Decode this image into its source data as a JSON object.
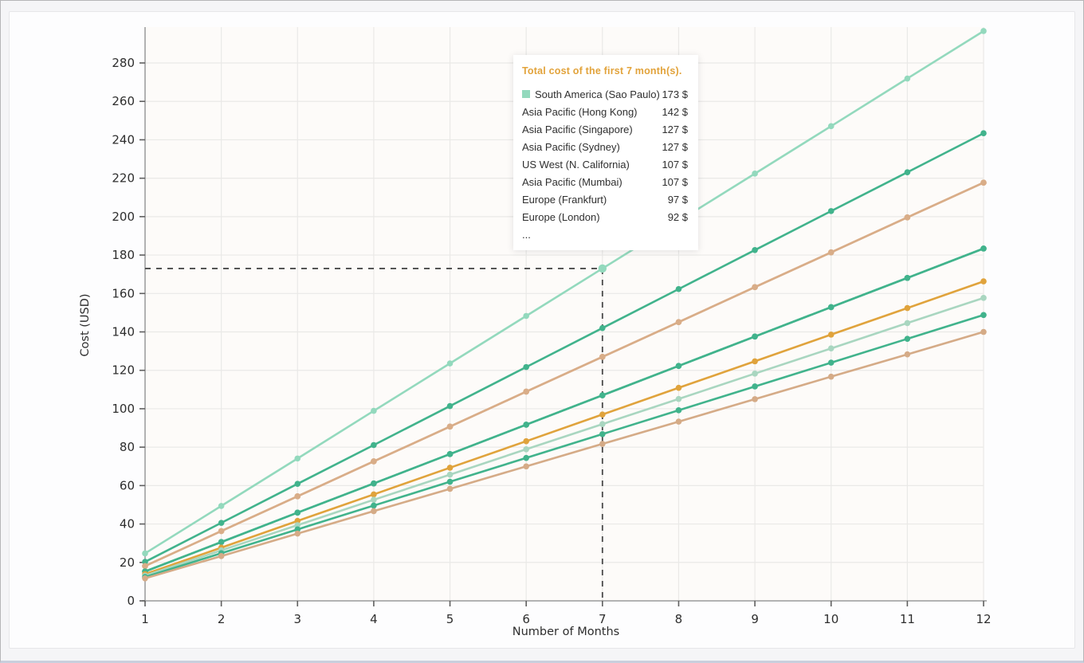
{
  "page": {
    "background": "#f5f5f7",
    "card_background": "#fdfdfe",
    "plot_background": "#fdfbf9",
    "grid_color": "#eae9e7",
    "axis_color": "#9a9a9a",
    "tick_color": "#5f5f5f",
    "crosshair_color": "#4a4a4a"
  },
  "chart_data": {
    "type": "line",
    "title": "",
    "xlabel": "Number of Months",
    "ylabel": "Cost (USD)",
    "x": [
      1,
      2,
      3,
      4,
      5,
      6,
      7,
      8,
      9,
      10,
      11,
      12
    ],
    "x_ticks": [
      1,
      2,
      3,
      4,
      5,
      6,
      7,
      8,
      9,
      10,
      11,
      12
    ],
    "y_ticks": [
      0,
      20,
      40,
      60,
      80,
      100,
      120,
      140,
      160,
      180,
      200,
      220,
      240,
      260,
      280
    ],
    "ylim": [
      0,
      300
    ],
    "grid": true,
    "legend_position": "tooltip-only",
    "crosshair": {
      "month": 7,
      "value": 173,
      "series": "South America (Sao Paulo)"
    },
    "tooltip_truncated": true,
    "series": [
      {
        "name": "South America (Sao Paulo)",
        "color": "#93d9bd",
        "total_first_7_months": 173,
        "values": [
          24.7,
          49.4,
          74.1,
          98.9,
          123.6,
          148.3,
          173,
          197.7,
          222.4,
          247.1,
          271.9,
          296.6
        ]
      },
      {
        "name": "Asia Pacific (Hong Kong)",
        "color": "#41b38c",
        "total_first_7_months": 142,
        "values": [
          20.3,
          40.6,
          60.9,
          81.1,
          101.4,
          121.7,
          142,
          162.3,
          182.6,
          202.9,
          223.1,
          243.4
        ]
      },
      {
        "name": "Asia Pacific (Singapore)",
        "color": "#d9ad88",
        "total_first_7_months": 127,
        "values": [
          18.1,
          36.3,
          54.4,
          72.6,
          90.7,
          108.9,
          127,
          145.1,
          163.3,
          181.4,
          199.6,
          217.7
        ]
      },
      {
        "name": "Asia Pacific (Sydney)",
        "color": "#d9ad88",
        "total_first_7_months": 127,
        "values": [
          18.1,
          36.3,
          54.4,
          72.6,
          90.7,
          108.9,
          127,
          145.1,
          163.3,
          181.4,
          199.6,
          217.7
        ]
      },
      {
        "name": "US West (N. California)",
        "color": "#41b38c",
        "total_first_7_months": 107,
        "values": [
          15.3,
          30.6,
          45.9,
          61.1,
          76.4,
          91.7,
          107,
          122.3,
          137.6,
          152.9,
          168.1,
          183.4
        ]
      },
      {
        "name": "Asia Pacific (Mumbai)",
        "color": "#41b38c",
        "total_first_7_months": 107,
        "values": [
          15.3,
          30.6,
          45.9,
          61.1,
          76.4,
          91.7,
          107,
          122.3,
          137.6,
          152.9,
          168.1,
          183.4
        ]
      },
      {
        "name": "Europe (Frankfurt)",
        "color": "#e0a33c",
        "total_first_7_months": 97,
        "values": [
          13.9,
          27.7,
          41.6,
          55.4,
          69.3,
          83.1,
          97,
          110.9,
          124.7,
          138.6,
          152.4,
          166.3
        ]
      },
      {
        "name": "Europe (London)",
        "color": "#a9d6c0",
        "total_first_7_months": 92,
        "values": [
          13.1,
          26.3,
          39.4,
          52.6,
          65.7,
          78.9,
          92,
          105.1,
          118.3,
          131.4,
          144.6,
          157.7
        ]
      },
      {
        "name": null,
        "color": "#41b38c",
        "total_first_7_months": 87,
        "values": [
          12.4,
          24.8,
          37.2,
          49.6,
          62,
          74.4,
          86.8,
          99.2,
          111.6,
          124,
          136.4,
          148.8
        ]
      },
      {
        "name": null,
        "color": "#d5ab87",
        "total_first_7_months": 82,
        "values": [
          11.7,
          23.3,
          35,
          46.7,
          58.3,
          70,
          81.7,
          93.3,
          105,
          116.7,
          128.3,
          140
        ]
      }
    ]
  },
  "tooltip": {
    "title": "Total cost of the first 7 month(s).",
    "title_color": "#e2a33b",
    "rows": [
      {
        "label": "South America (Sao Paulo)",
        "value": "173 $",
        "marker_color": "#93d9bd"
      },
      {
        "label": "Asia Pacific (Hong Kong)",
        "value": "142 $"
      },
      {
        "label": "Asia Pacific (Singapore)",
        "value": "127 $"
      },
      {
        "label": "Asia Pacific (Sydney)",
        "value": "127 $"
      },
      {
        "label": "US West (N. California)",
        "value": "107 $"
      },
      {
        "label": "Asia Pacific (Mumbai)",
        "value": "107 $"
      },
      {
        "label": "Europe (Frankfurt)",
        "value": "97 $"
      },
      {
        "label": "Europe (London)",
        "value": "92 $"
      }
    ],
    "more_indicator": "..."
  }
}
